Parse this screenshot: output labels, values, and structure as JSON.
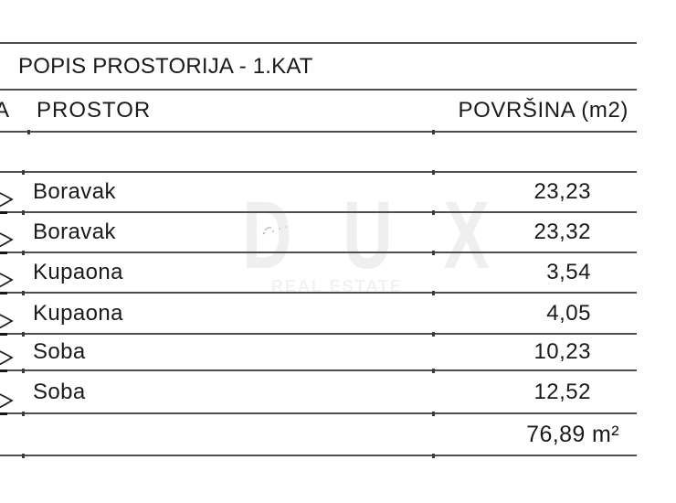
{
  "title": "POPIS PROSTORIJA - 1.KAT",
  "table": {
    "partial_left_header": "A",
    "col_room": "PROSTOR",
    "col_area": "POVRŠINA (m2)",
    "rows": [
      {
        "name": "Boravak",
        "area": "23,23"
      },
      {
        "name": "Boravak",
        "area": "23,32"
      },
      {
        "name": "Kupaona",
        "area": "3,54"
      },
      {
        "name": "Kupaona",
        "area": "4,05"
      },
      {
        "name": "Soba",
        "area": "10,23"
      },
      {
        "name": "Soba",
        "area": "12,52"
      }
    ],
    "total": "76,89 m²"
  },
  "watermark": {
    "brand": "D U X",
    "tagline": "REAL ESTATE"
  },
  "colors": {
    "text": "#1a1a1a",
    "rule_line": "#4f4f4f",
    "watermark": "#ececec",
    "background": "#ffffff"
  }
}
